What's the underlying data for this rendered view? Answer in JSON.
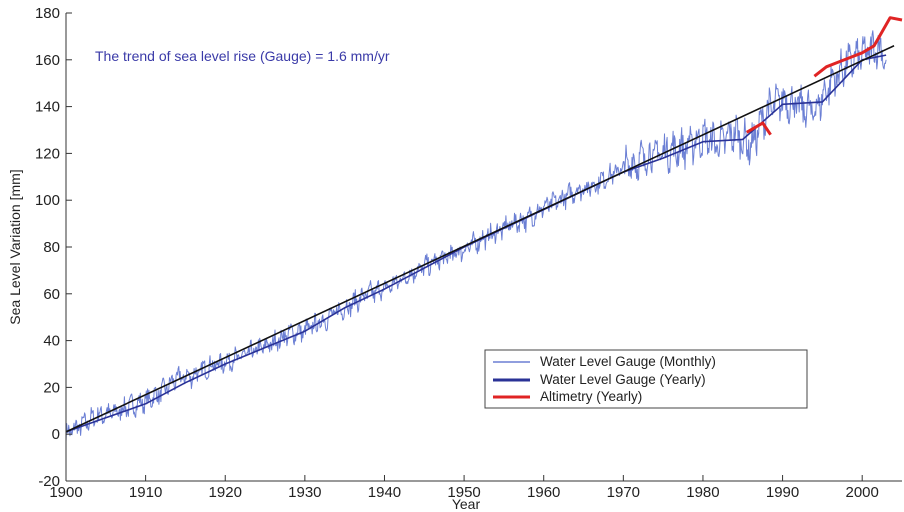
{
  "chart_data": {
    "type": "line",
    "title": "",
    "xlabel": "Year",
    "ylabel": "Sea Level Variation [mm]",
    "annotation": "The trend of sea level rise (Gauge) = 1.6 mm/yr",
    "xlim": [
      1900,
      2005
    ],
    "ylim": [
      -20,
      180
    ],
    "xticks": [
      1900,
      1910,
      1920,
      1930,
      1940,
      1950,
      1960,
      1970,
      1980,
      1990,
      2000
    ],
    "yticks": [
      -20,
      0,
      20,
      40,
      60,
      80,
      100,
      120,
      140,
      160,
      180
    ],
    "grid": false,
    "legend_position": "lower-right",
    "colors": {
      "monthly": "#6b7fd4",
      "yearly": "#2a3296",
      "trend": "#111111",
      "altimetry": "#e02424",
      "annotation": "#3a3aa8"
    },
    "series": [
      {
        "name": "Water Level Gauge (Monthly)",
        "x": [
          1900,
          1902,
          1904,
          1906,
          1908,
          1910,
          1912,
          1914,
          1916,
          1918,
          1920,
          1922,
          1924,
          1926,
          1928,
          1930,
          1932,
          1934,
          1936,
          1938,
          1940,
          1942,
          1944,
          1946,
          1948,
          1950,
          1952,
          1954,
          1956,
          1958,
          1960,
          1962,
          1964,
          1966,
          1968,
          1970,
          1972,
          1974,
          1976,
          1978,
          1980,
          1982,
          1984,
          1986,
          1988,
          1990,
          1992,
          1994,
          1996,
          1998,
          2000,
          2002,
          2003
        ],
        "y": [
          0,
          4,
          8,
          9,
          12,
          14,
          18,
          24,
          25,
          29,
          31,
          33,
          36,
          39,
          43,
          44,
          48,
          52,
          56,
          60,
          62,
          66,
          70,
          73,
          76,
          79,
          83,
          86,
          90,
          92,
          97,
          100,
          104,
          106,
          110,
          114,
          117,
          120,
          121,
          123,
          127,
          124,
          129,
          123,
          138,
          143,
          140,
          138,
          150,
          158,
          162,
          166,
          160
        ],
        "amplitude": 3.5
      },
      {
        "name": "Water Level Gauge (Yearly)",
        "x": [
          1900,
          1905,
          1910,
          1915,
          1920,
          1925,
          1930,
          1935,
          1940,
          1945,
          1950,
          1955,
          1960,
          1965,
          1970,
          1975,
          1980,
          1985,
          1990,
          1995,
          2000,
          2003
        ],
        "y": [
          1,
          7,
          13,
          22,
          30,
          37,
          44,
          54,
          62,
          71,
          80,
          88,
          96,
          104,
          112,
          118,
          125,
          126,
          141,
          142,
          160,
          162
        ]
      },
      {
        "name": "Altimetry (Yearly)",
        "x": [
          1985.5,
          1986.5,
          1987.5,
          1988.5,
          1994,
          1995.5,
          1997,
          1998.5,
          2000,
          2001.5,
          2002.5,
          2003.5,
          2005
        ],
        "y": [
          129,
          131,
          133,
          128,
          153,
          157,
          159,
          161,
          163,
          166,
          172,
          178,
          177
        ]
      },
      {
        "name": "trend",
        "x": [
          1900,
          2004
        ],
        "y": [
          1,
          166
        ]
      }
    ],
    "legend": [
      {
        "label": "Water Level Gauge (Monthly)"
      },
      {
        "label": "Water Level Gauge (Yearly)"
      },
      {
        "label": "Altimetry (Yearly)"
      }
    ]
  }
}
